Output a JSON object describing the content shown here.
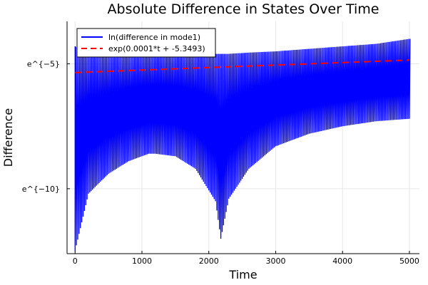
{
  "chart_data": {
    "type": "line",
    "title": "Absolute Difference in States Over Time",
    "xlabel": "Time",
    "ylabel": "Difference",
    "xlim": [
      -120,
      5150
    ],
    "ylim": [
      -12.6,
      -3.3
    ],
    "x_ticks": [
      0,
      1000,
      2000,
      3000,
      4000,
      5000
    ],
    "x_tick_labels": [
      "0",
      "1000",
      "2000",
      "3000",
      "4000",
      "5000"
    ],
    "y_ticks": [
      -5,
      -10
    ],
    "y_tick_labels": [
      "e^{−5}",
      "e^{−10}"
    ],
    "grid": true,
    "legend_position": "top-left",
    "series": [
      {
        "name": "ln(difference in mode1)",
        "color": "#0000ff",
        "style": "solid",
        "sampled_envelope": {
          "x": [
            0,
            200,
            500,
            800,
            1100,
            1200,
            1500,
            1800,
            2100,
            2180,
            2300,
            2600,
            3000,
            3500,
            4000,
            4500,
            5000
          ],
          "upper": [
            -4.3,
            -4.6,
            -4.65,
            -4.65,
            -4.6,
            -4.6,
            -4.6,
            -4.6,
            -4.6,
            -4.6,
            -4.6,
            -4.55,
            -4.5,
            -4.4,
            -4.3,
            -4.2,
            -4.0
          ],
          "lower": [
            -12.5,
            -10.2,
            -9.4,
            -8.9,
            -8.6,
            -8.6,
            -8.7,
            -9.2,
            -10.5,
            -12.0,
            -10.4,
            -9.2,
            -8.3,
            -7.8,
            -7.5,
            -7.3,
            -7.2
          ]
        }
      },
      {
        "name": "exp(0.0001*t + -5.3493)",
        "color": "#ff0000",
        "style": "dashed",
        "x": [
          0,
          5000
        ],
        "y": [
          -5.3493,
          -4.8493
        ]
      }
    ]
  }
}
